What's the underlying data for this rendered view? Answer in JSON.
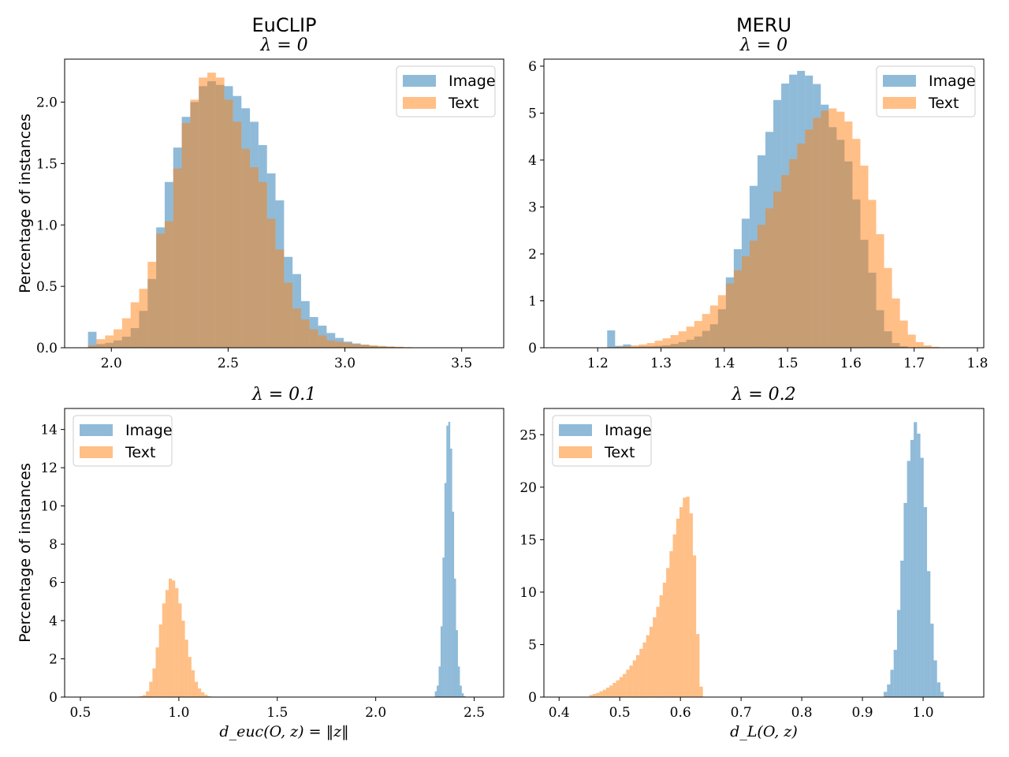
{
  "chart_data": [
    {
      "type": "histogram",
      "title": "EuCLIP",
      "subtitle": "λ = 0",
      "xlabel": "",
      "ylabel": "Percentage of instances",
      "xlim": [
        1.8,
        3.68
      ],
      "ylim": [
        0,
        2.35
      ],
      "xticks": [
        2.0,
        2.5,
        3.0,
        3.5
      ],
      "xtick_labels": [
        "2.0",
        "2.5",
        "3.0",
        "3.5"
      ],
      "yticks": [
        0,
        0.5,
        1.0,
        1.5,
        2.0
      ],
      "ytick_labels": [
        "0.0",
        "0.5",
        "1.0",
        "1.5",
        "2.0"
      ],
      "legend": "top-right",
      "series": [
        {
          "name": "Image",
          "color": "#1f77b4",
          "bin_width": 0.0365,
          "bin_starts": [
            1.9,
            1.9365,
            1.973,
            2.0095,
            2.046,
            2.0825,
            2.119,
            2.1555,
            2.192,
            2.2285,
            2.265,
            2.3015,
            2.338,
            2.3745,
            2.411,
            2.4475,
            2.484,
            2.5205,
            2.557,
            2.5935,
            2.63,
            2.6665,
            2.703,
            2.7395,
            2.776,
            2.8125,
            2.849,
            2.8855,
            2.922,
            2.9585,
            2.995,
            3.0315,
            3.068,
            3.1045,
            3.141,
            3.1775,
            3.214,
            3.2505
          ],
          "values": [
            0.13,
            0.03,
            0.04,
            0.06,
            0.09,
            0.16,
            0.3,
            0.56,
            0.98,
            1.35,
            1.63,
            1.88,
            2.0,
            2.13,
            2.17,
            2.14,
            2.13,
            2.05,
            1.95,
            1.84,
            1.65,
            1.42,
            1.2,
            0.74,
            0.6,
            0.38,
            0.25,
            0.18,
            0.12,
            0.08,
            0.05,
            0.035,
            0.025,
            0.015,
            0.01,
            0.008,
            0.005,
            0.003
          ]
        },
        {
          "name": "Text",
          "color": "#ff7f0e",
          "bin_width": 0.0365,
          "bin_starts": [
            1.9,
            1.9365,
            1.973,
            2.0095,
            2.046,
            2.0825,
            2.119,
            2.1555,
            2.192,
            2.2285,
            2.265,
            2.3015,
            2.338,
            2.3745,
            2.411,
            2.4475,
            2.484,
            2.5205,
            2.557,
            2.5935,
            2.63,
            2.6665,
            2.703,
            2.7395,
            2.776,
            2.8125,
            2.849,
            2.8855,
            2.922,
            2.9585,
            2.995,
            3.0315,
            3.068,
            3.1045,
            3.141,
            3.1775,
            3.214,
            3.2505
          ],
          "values": [
            0.02,
            0.07,
            0.1,
            0.15,
            0.24,
            0.37,
            0.48,
            0.7,
            0.93,
            1.03,
            1.46,
            1.83,
            2.02,
            2.2,
            2.24,
            2.2,
            2.02,
            1.84,
            1.62,
            1.47,
            1.35,
            1.05,
            0.8,
            0.53,
            0.32,
            0.23,
            0.15,
            0.1,
            0.06,
            0.05,
            0.04,
            0.03,
            0.025,
            0.02,
            0.015,
            0.01,
            0.008,
            0.005
          ]
        }
      ]
    },
    {
      "type": "histogram",
      "title": "MERU",
      "subtitle": "λ = 0",
      "xlabel": "",
      "ylabel": "",
      "xlim": [
        1.115,
        1.81
      ],
      "ylim": [
        0,
        6.15
      ],
      "xticks": [
        1.2,
        1.3,
        1.4,
        1.5,
        1.6,
        1.7,
        1.8
      ],
      "xtick_labels": [
        "1.2",
        "1.3",
        "1.4",
        "1.5",
        "1.6",
        "1.7",
        "1.8"
      ],
      "yticks": [
        0,
        1,
        2,
        3,
        4,
        5,
        6
      ],
      "ytick_labels": [
        "0",
        "1",
        "2",
        "3",
        "4",
        "5",
        "6"
      ],
      "legend": "top-right",
      "series": [
        {
          "name": "Image",
          "color": "#1f77b4",
          "bin_width": 0.0125,
          "bin_starts": [
            1.215,
            1.2275,
            1.24,
            1.2525,
            1.265,
            1.2775,
            1.29,
            1.3025,
            1.315,
            1.3275,
            1.34,
            1.3525,
            1.365,
            1.3775,
            1.39,
            1.4025,
            1.415,
            1.4275,
            1.44,
            1.4525,
            1.465,
            1.4775,
            1.49,
            1.5025,
            1.515,
            1.5275,
            1.54,
            1.5525,
            1.565,
            1.5775,
            1.59,
            1.6025,
            1.615,
            1.6275,
            1.64,
            1.6525,
            1.665,
            1.6775
          ],
          "values": [
            0.37,
            0.04,
            0.07,
            0.02,
            0.03,
            0.03,
            0.04,
            0.05,
            0.08,
            0.12,
            0.17,
            0.24,
            0.36,
            0.5,
            0.82,
            1.5,
            2.1,
            2.75,
            3.45,
            4.1,
            4.6,
            5.28,
            5.63,
            5.82,
            5.9,
            5.8,
            5.62,
            5.18,
            4.7,
            4.43,
            3.97,
            3.16,
            2.3,
            1.6,
            0.8,
            0.35,
            0.1,
            0.03
          ]
        },
        {
          "name": "Text",
          "color": "#ff7f0e",
          "bin_width": 0.0125,
          "bin_starts": [
            1.215,
            1.2275,
            1.24,
            1.2525,
            1.265,
            1.2775,
            1.29,
            1.3025,
            1.315,
            1.3275,
            1.34,
            1.3525,
            1.365,
            1.3775,
            1.39,
            1.4025,
            1.415,
            1.4275,
            1.44,
            1.4525,
            1.465,
            1.4775,
            1.49,
            1.5025,
            1.515,
            1.5275,
            1.54,
            1.5525,
            1.565,
            1.5775,
            1.59,
            1.6025,
            1.615,
            1.6275,
            1.64,
            1.6525,
            1.665,
            1.6775,
            1.69,
            1.7025,
            1.715,
            1.7275
          ],
          "values": [
            0.01,
            0.02,
            0.03,
            0.05,
            0.07,
            0.1,
            0.15,
            0.2,
            0.27,
            0.35,
            0.45,
            0.57,
            0.72,
            0.9,
            1.12,
            1.37,
            1.65,
            1.95,
            2.28,
            2.62,
            2.97,
            3.33,
            3.68,
            4.02,
            4.35,
            4.65,
            4.9,
            5.05,
            5.1,
            5.03,
            4.82,
            4.45,
            3.88,
            3.15,
            2.42,
            1.7,
            1.05,
            0.58,
            0.28,
            0.12,
            0.05,
            0.02
          ]
        }
      ]
    },
    {
      "type": "histogram",
      "title": "",
      "subtitle": "λ = 0.1",
      "xlabel": "d_euc(O, z) = ‖z‖",
      "ylabel": "Percentage of instances",
      "xlim": [
        0.42,
        2.65
      ],
      "ylim": [
        0,
        15.1
      ],
      "xticks": [
        0.5,
        1.0,
        1.5,
        2.0,
        2.5
      ],
      "xtick_labels": [
        "0.5",
        "1.0",
        "1.5",
        "2.0",
        "2.5"
      ],
      "yticks": [
        0,
        2,
        4,
        6,
        8,
        10,
        12,
        14
      ],
      "ytick_labels": [
        "0",
        "2",
        "4",
        "6",
        "8",
        "10",
        "12",
        "14"
      ],
      "legend": "top-left",
      "series": [
        {
          "name": "Image",
          "color": "#1f77b4",
          "bin_width": 0.0098,
          "bin_starts": [
            2.3,
            2.3098,
            2.3196,
            2.3294,
            2.3392,
            2.349,
            2.3588,
            2.3686,
            2.3784,
            2.3882,
            2.398,
            2.4078,
            2.4176,
            2.4274,
            2.4372,
            2.447
          ],
          "values": [
            0.3,
            0.6,
            1.6,
            3.7,
            7.3,
            11.2,
            14.2,
            14.4,
            13.0,
            9.7,
            6.2,
            3.5,
            1.6,
            0.6,
            0.2,
            0.05
          ]
        },
        {
          "name": "Text",
          "color": "#ff7f0e",
          "bin_width": 0.0165,
          "bin_starts": [
            0.8,
            0.8165,
            0.833,
            0.8495,
            0.866,
            0.8825,
            0.899,
            0.9155,
            0.932,
            0.9485,
            0.965,
            0.9815,
            0.998,
            1.0145,
            1.031,
            1.0475,
            1.064,
            1.0805,
            1.097,
            1.1135,
            1.13,
            1.1465
          ],
          "values": [
            0.05,
            0.1,
            0.3,
            0.8,
            1.5,
            2.6,
            3.8,
            4.9,
            5.6,
            6.2,
            6.1,
            5.7,
            4.9,
            4.0,
            3.0,
            2.1,
            1.4,
            0.8,
            0.45,
            0.25,
            0.12,
            0.05
          ]
        }
      ]
    },
    {
      "type": "histogram",
      "title": "",
      "subtitle": "λ = 0.2",
      "xlabel": "d_L(O, z)",
      "ylabel": "",
      "xlim": [
        0.375,
        1.1
      ],
      "ylim": [
        0,
        27.5
      ],
      "xticks": [
        0.4,
        0.5,
        0.6,
        0.7,
        0.8,
        0.9,
        1.0
      ],
      "xtick_labels": [
        "0.4",
        "0.5",
        "0.6",
        "0.7",
        "0.8",
        "0.9",
        "1.0"
      ],
      "yticks": [
        0,
        5,
        10,
        15,
        20,
        25
      ],
      "ytick_labels": [
        "0",
        "5",
        "10",
        "15",
        "20",
        "25"
      ],
      "legend": "top-left",
      "series": [
        {
          "name": "Image",
          "color": "#1f77b4",
          "bin_width": 0.0055,
          "bin_starts": [
            0.935,
            0.9405,
            0.946,
            0.9515,
            0.957,
            0.9625,
            0.968,
            0.9735,
            0.979,
            0.9845,
            0.99,
            0.9955,
            1.001,
            1.0065,
            1.012,
            1.0175,
            1.023,
            1.0285
          ],
          "values": [
            0.5,
            1.2,
            2.6,
            4.5,
            8.3,
            13.0,
            18.5,
            22.5,
            24.5,
            26.2,
            25.1,
            22.8,
            18.1,
            12.0,
            7.0,
            3.5,
            1.4,
            0.5
          ]
        },
        {
          "name": "Text",
          "color": "#ff7f0e",
          "bin_width": 0.0055,
          "bin_starts": [
            0.45,
            0.4555,
            0.461,
            0.4665,
            0.472,
            0.4775,
            0.483,
            0.4885,
            0.494,
            0.4995,
            0.505,
            0.5105,
            0.516,
            0.5215,
            0.527,
            0.5325,
            0.538,
            0.5435,
            0.549,
            0.5545,
            0.56,
            0.5655,
            0.571,
            0.5765,
            0.582,
            0.5875,
            0.593,
            0.5985,
            0.604,
            0.6095,
            0.615,
            0.6205,
            0.626,
            0.6315
          ],
          "values": [
            0.2,
            0.3,
            0.4,
            0.55,
            0.7,
            0.9,
            1.1,
            1.35,
            1.6,
            1.9,
            2.2,
            2.6,
            3.0,
            3.5,
            4.0,
            4.6,
            5.2,
            5.9,
            6.7,
            7.6,
            8.6,
            9.7,
            10.9,
            12.3,
            13.9,
            15.5,
            17.0,
            18.1,
            19.0,
            19.1,
            17.5,
            13.5,
            6.0,
            1.0
          ]
        }
      ]
    }
  ]
}
